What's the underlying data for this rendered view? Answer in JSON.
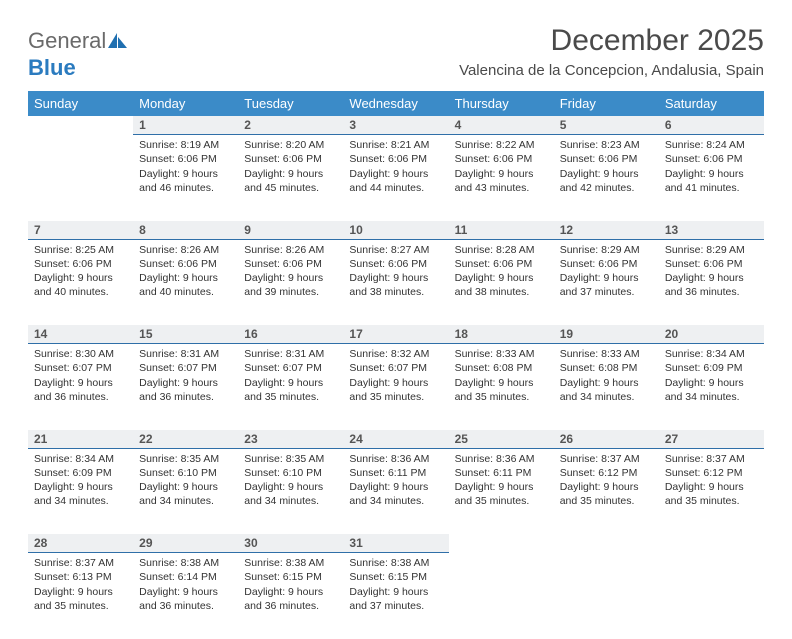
{
  "brand": {
    "part1": "General",
    "part2": "Blue"
  },
  "title": "December 2025",
  "location": "Valencina de la Concepcion, Andalusia, Spain",
  "colors": {
    "header_bg": "#3b8bc8",
    "header_text": "#ffffff",
    "daynum_bg": "#eef0f2",
    "daynum_border": "#2f6fa8",
    "text": "#333333",
    "logo_gray": "#6a6a6a",
    "logo_blue": "#2b7bbf"
  },
  "weekdays": [
    "Sunday",
    "Monday",
    "Tuesday",
    "Wednesday",
    "Thursday",
    "Friday",
    "Saturday"
  ],
  "weeks": [
    [
      null,
      {
        "n": "1",
        "sr": "8:19 AM",
        "ss": "6:06 PM",
        "dl": "9 hours and 46 minutes."
      },
      {
        "n": "2",
        "sr": "8:20 AM",
        "ss": "6:06 PM",
        "dl": "9 hours and 45 minutes."
      },
      {
        "n": "3",
        "sr": "8:21 AM",
        "ss": "6:06 PM",
        "dl": "9 hours and 44 minutes."
      },
      {
        "n": "4",
        "sr": "8:22 AM",
        "ss": "6:06 PM",
        "dl": "9 hours and 43 minutes."
      },
      {
        "n": "5",
        "sr": "8:23 AM",
        "ss": "6:06 PM",
        "dl": "9 hours and 42 minutes."
      },
      {
        "n": "6",
        "sr": "8:24 AM",
        "ss": "6:06 PM",
        "dl": "9 hours and 41 minutes."
      }
    ],
    [
      {
        "n": "7",
        "sr": "8:25 AM",
        "ss": "6:06 PM",
        "dl": "9 hours and 40 minutes."
      },
      {
        "n": "8",
        "sr": "8:26 AM",
        "ss": "6:06 PM",
        "dl": "9 hours and 40 minutes."
      },
      {
        "n": "9",
        "sr": "8:26 AM",
        "ss": "6:06 PM",
        "dl": "9 hours and 39 minutes."
      },
      {
        "n": "10",
        "sr": "8:27 AM",
        "ss": "6:06 PM",
        "dl": "9 hours and 38 minutes."
      },
      {
        "n": "11",
        "sr": "8:28 AM",
        "ss": "6:06 PM",
        "dl": "9 hours and 38 minutes."
      },
      {
        "n": "12",
        "sr": "8:29 AM",
        "ss": "6:06 PM",
        "dl": "9 hours and 37 minutes."
      },
      {
        "n": "13",
        "sr": "8:29 AM",
        "ss": "6:06 PM",
        "dl": "9 hours and 36 minutes."
      }
    ],
    [
      {
        "n": "14",
        "sr": "8:30 AM",
        "ss": "6:07 PM",
        "dl": "9 hours and 36 minutes."
      },
      {
        "n": "15",
        "sr": "8:31 AM",
        "ss": "6:07 PM",
        "dl": "9 hours and 36 minutes."
      },
      {
        "n": "16",
        "sr": "8:31 AM",
        "ss": "6:07 PM",
        "dl": "9 hours and 35 minutes."
      },
      {
        "n": "17",
        "sr": "8:32 AM",
        "ss": "6:07 PM",
        "dl": "9 hours and 35 minutes."
      },
      {
        "n": "18",
        "sr": "8:33 AM",
        "ss": "6:08 PM",
        "dl": "9 hours and 35 minutes."
      },
      {
        "n": "19",
        "sr": "8:33 AM",
        "ss": "6:08 PM",
        "dl": "9 hours and 34 minutes."
      },
      {
        "n": "20",
        "sr": "8:34 AM",
        "ss": "6:09 PM",
        "dl": "9 hours and 34 minutes."
      }
    ],
    [
      {
        "n": "21",
        "sr": "8:34 AM",
        "ss": "6:09 PM",
        "dl": "9 hours and 34 minutes."
      },
      {
        "n": "22",
        "sr": "8:35 AM",
        "ss": "6:10 PM",
        "dl": "9 hours and 34 minutes."
      },
      {
        "n": "23",
        "sr": "8:35 AM",
        "ss": "6:10 PM",
        "dl": "9 hours and 34 minutes."
      },
      {
        "n": "24",
        "sr": "8:36 AM",
        "ss": "6:11 PM",
        "dl": "9 hours and 34 minutes."
      },
      {
        "n": "25",
        "sr": "8:36 AM",
        "ss": "6:11 PM",
        "dl": "9 hours and 35 minutes."
      },
      {
        "n": "26",
        "sr": "8:37 AM",
        "ss": "6:12 PM",
        "dl": "9 hours and 35 minutes."
      },
      {
        "n": "27",
        "sr": "8:37 AM",
        "ss": "6:12 PM",
        "dl": "9 hours and 35 minutes."
      }
    ],
    [
      {
        "n": "28",
        "sr": "8:37 AM",
        "ss": "6:13 PM",
        "dl": "9 hours and 35 minutes."
      },
      {
        "n": "29",
        "sr": "8:38 AM",
        "ss": "6:14 PM",
        "dl": "9 hours and 36 minutes."
      },
      {
        "n": "30",
        "sr": "8:38 AM",
        "ss": "6:15 PM",
        "dl": "9 hours and 36 minutes."
      },
      {
        "n": "31",
        "sr": "8:38 AM",
        "ss": "6:15 PM",
        "dl": "9 hours and 37 minutes."
      },
      null,
      null,
      null
    ]
  ],
  "labels": {
    "sunrise": "Sunrise:",
    "sunset": "Sunset:",
    "daylight": "Daylight:"
  }
}
